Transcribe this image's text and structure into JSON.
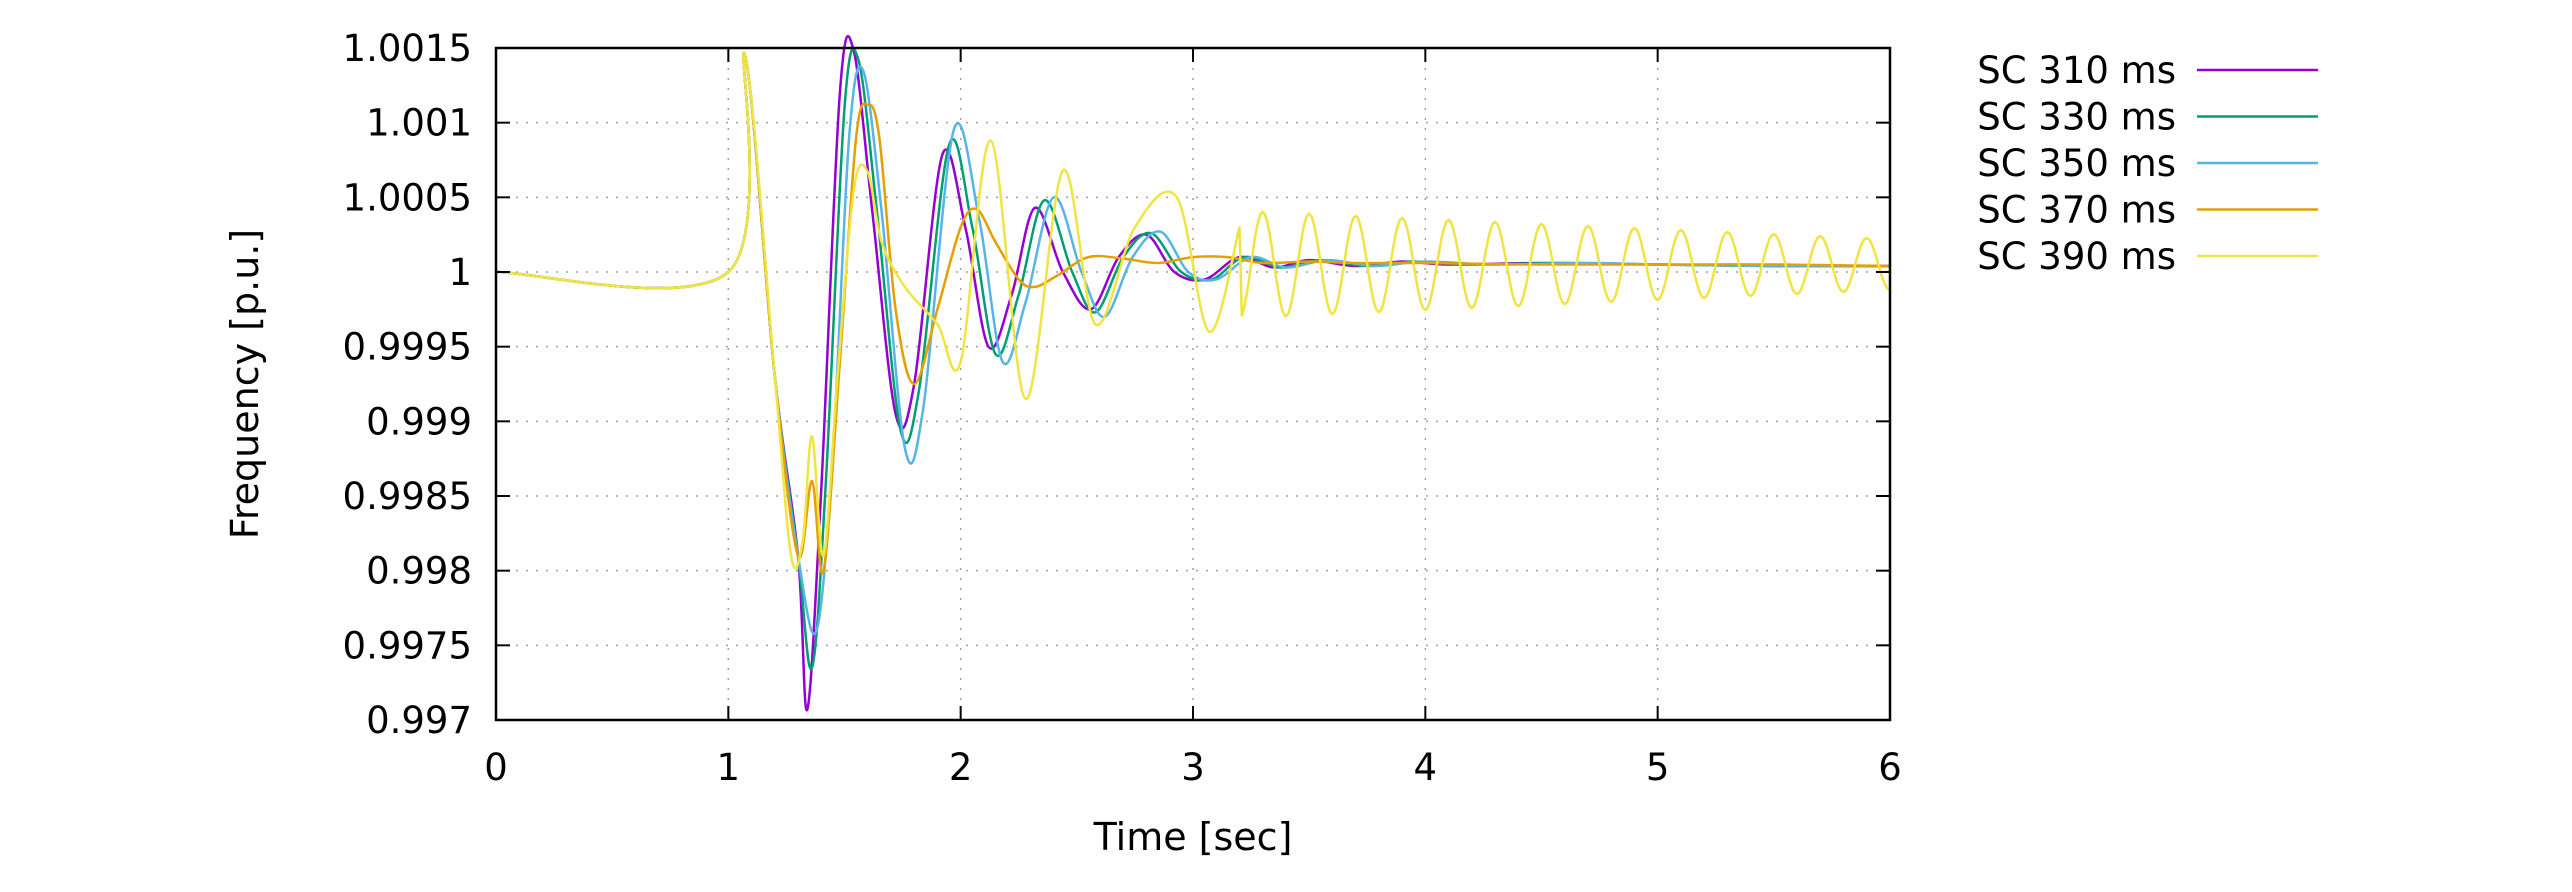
{
  "chart_data": {
    "type": "line",
    "title": "",
    "xlabel": "Time [sec]",
    "ylabel": "Frequency [p.u.]",
    "xlim": [
      0,
      6
    ],
    "ylim": [
      0.997,
      1.0015
    ],
    "x_ticks": [
      0,
      1,
      2,
      3,
      4,
      5,
      6
    ],
    "x_tick_labels": [
      "0",
      "1",
      "2",
      "3",
      "4",
      "5",
      "6"
    ],
    "y_ticks": [
      0.997,
      0.9975,
      0.998,
      0.9985,
      0.999,
      0.9995,
      1.0,
      1.0005,
      1.001,
      1.0015
    ],
    "y_tick_labels": [
      "0.997",
      "0.9975",
      "0.998",
      "0.9985",
      "0.999",
      "0.9995",
      "1",
      "1.0005",
      "1.001",
      "1.0015"
    ],
    "grid": true,
    "legend_position": "outside-top-right",
    "series": [
      {
        "name": "SC 310 ms",
        "color": "#9400d3",
        "x": [
          0,
          1.0,
          1.07,
          1.2,
          1.3,
          1.34,
          1.4,
          1.48,
          1.54,
          1.62,
          1.72,
          1.8,
          1.92,
          2.02,
          2.12,
          2.22,
          2.32,
          2.44,
          2.56,
          2.68,
          2.8,
          2.92,
          3.05,
          3.2,
          3.35,
          3.5,
          3.7,
          3.9,
          4.1,
          4.5,
          5.0,
          5.5,
          6.0
        ],
        "y": [
          1.0,
          1.0,
          1.00146,
          0.9993,
          0.9981,
          0.99707,
          0.99855,
          1.0012,
          1.00148,
          1.0004,
          0.99905,
          0.99925,
          1.00078,
          1.0003,
          0.9995,
          0.99985,
          1.00043,
          1.0,
          0.99975,
          1.0001,
          1.00025,
          1.0,
          0.99995,
          1.0001,
          1.00003,
          1.00008,
          1.00004,
          1.00007,
          1.00005,
          1.00006,
          1.00005,
          1.00004,
          1.00004
        ]
      },
      {
        "name": "SC 330 ms",
        "color": "#009e73",
        "x": [
          0,
          1.0,
          1.07,
          1.2,
          1.3,
          1.36,
          1.42,
          1.5,
          1.56,
          1.64,
          1.74,
          1.82,
          1.95,
          2.05,
          2.15,
          2.25,
          2.36,
          2.48,
          2.58,
          2.7,
          2.82,
          2.95,
          3.08,
          3.22,
          3.38,
          3.55,
          3.75,
          3.95,
          4.2,
          4.6,
          5.0,
          5.5,
          6.0
        ],
        "y": [
          1.0,
          1.0,
          1.00146,
          0.9993,
          0.9981,
          0.99735,
          0.9986,
          1.0011,
          1.00142,
          1.0004,
          0.99895,
          0.9992,
          1.00085,
          1.0003,
          0.99945,
          0.99985,
          1.00048,
          1.0,
          0.99973,
          1.0001,
          1.00026,
          1.0,
          0.99995,
          1.0001,
          1.00003,
          1.00008,
          1.00004,
          1.00007,
          1.00005,
          1.00006,
          1.00005,
          1.00004,
          1.00004
        ]
      },
      {
        "name": "SC 350 ms",
        "color": "#56b4e9",
        "x": [
          0,
          1.0,
          1.07,
          1.2,
          1.3,
          1.38,
          1.45,
          1.52,
          1.58,
          1.66,
          1.76,
          1.84,
          1.97,
          2.08,
          2.18,
          2.28,
          2.4,
          2.52,
          2.62,
          2.74,
          2.86,
          2.98,
          3.1,
          3.25,
          3.4,
          3.58,
          3.78,
          4.0,
          4.3,
          4.7,
          5.0,
          5.5,
          6.0
        ],
        "y": [
          1.0,
          1.0,
          1.00146,
          0.9993,
          0.9981,
          0.9976,
          0.9988,
          1.0009,
          1.00135,
          1.0004,
          0.99882,
          0.9991,
          1.00095,
          1.00035,
          0.9994,
          0.9998,
          1.0005,
          1.0,
          0.9997,
          1.0001,
          1.00027,
          1.0,
          0.99995,
          1.0001,
          1.00003,
          1.00008,
          1.00004,
          1.00007,
          1.00005,
          1.00006,
          1.00005,
          1.00004,
          1.00004
        ]
      },
      {
        "name": "SC 370 ms",
        "color": "#e69f00",
        "x": [
          0,
          1.0,
          1.07,
          1.2,
          1.3,
          1.36,
          1.41,
          1.48,
          1.55,
          1.6,
          1.65,
          1.72,
          1.8,
          1.9,
          2.0,
          2.07,
          2.15,
          2.25,
          2.32,
          2.42,
          2.55,
          2.7,
          2.85,
          3.0,
          3.15,
          3.3,
          3.5,
          3.7,
          4.0,
          4.5,
          5.0,
          5.5,
          6.0
        ],
        "y": [
          1.0,
          1.0,
          1.00146,
          0.9993,
          0.9981,
          0.9986,
          0.998,
          0.9994,
          1.0009,
          1.00112,
          1.0009,
          0.99975,
          0.99925,
          0.99975,
          1.0003,
          1.00042,
          1.0002,
          0.99995,
          0.9999,
          0.99998,
          1.0001,
          1.00009,
          1.00006,
          1.0001,
          1.0001,
          1.00006,
          1.00007,
          1.00006,
          1.00006,
          1.00005,
          1.00005,
          1.00005,
          1.00004
        ]
      },
      {
        "name": "SC 390 ms",
        "color": "#f0e442",
        "x": [
          0,
          1.0,
          1.07,
          1.2,
          1.27,
          1.32,
          1.36,
          1.41,
          1.47,
          1.54,
          1.6,
          1.66,
          1.76,
          1.9,
          2.0,
          2.13,
          2.28,
          2.44,
          2.58,
          2.75,
          2.93,
          3.07,
          3.2
        ],
        "y": [
          1.0,
          1.0,
          1.00146,
          0.9993,
          0.9981,
          0.9982,
          0.9989,
          0.9981,
          0.9993,
          1.00055,
          1.00067,
          1.0002,
          0.9999,
          0.99965,
          0.9994,
          1.00088,
          0.99915,
          1.00068,
          0.99965,
          1.0003,
          1.0005,
          0.9996,
          1.0003
        ]
      }
    ]
  }
}
